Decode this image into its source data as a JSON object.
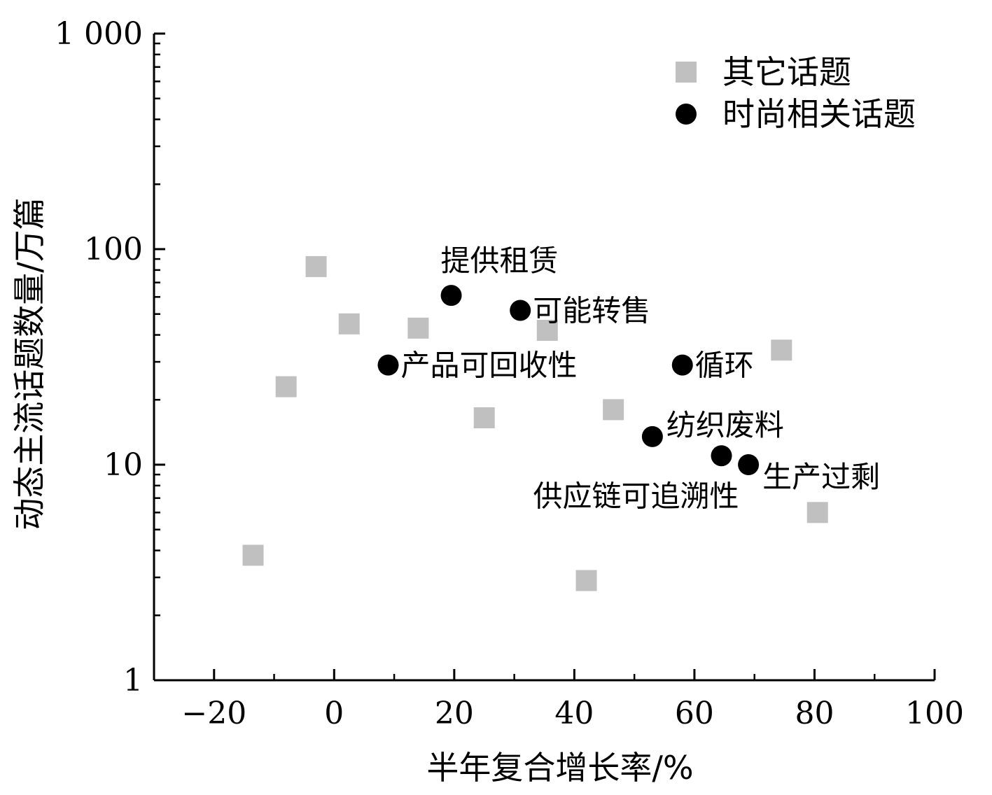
{
  "chart_data": {
    "type": "scatter",
    "xlabel": "半年复合增长率/%",
    "ylabel": "动态主流话题数量/万篇",
    "xlim": [
      -30,
      100
    ],
    "ylim": [
      1,
      1000
    ],
    "y_scale": "log",
    "x_ticks": [
      -20,
      0,
      20,
      40,
      60,
      80,
      100
    ],
    "x_tick_labels": [
      "−20",
      "0",
      "20",
      "40",
      "60",
      "80",
      "100"
    ],
    "y_ticks": [
      1,
      10,
      100,
      1000
    ],
    "y_tick_labels": [
      "1",
      "10",
      "100",
      "1 000"
    ],
    "legend_position": "top-right",
    "series": [
      {
        "name": "其它话题",
        "marker": "square",
        "color": "#c0c0c0",
        "points": [
          {
            "x": -3,
            "y": 83
          },
          {
            "x": 2.5,
            "y": 45
          },
          {
            "x": 14,
            "y": 43
          },
          {
            "x": 35.5,
            "y": 42
          },
          {
            "x": -8,
            "y": 23
          },
          {
            "x": 25,
            "y": 16.5
          },
          {
            "x": 46.5,
            "y": 18
          },
          {
            "x": 74.5,
            "y": 34
          },
          {
            "x": 80.5,
            "y": 6
          },
          {
            "x": -13.5,
            "y": 3.8
          },
          {
            "x": 42,
            "y": 2.9
          }
        ]
      },
      {
        "name": "时尚相关话题",
        "marker": "circle",
        "color": "#000000",
        "points": [
          {
            "x": 19.5,
            "y": 61,
            "label": "提供租赁"
          },
          {
            "x": 31,
            "y": 52,
            "label": "可能转售"
          },
          {
            "x": 9,
            "y": 29,
            "label": "产品可回收性"
          },
          {
            "x": 58,
            "y": 29,
            "label": "循环"
          },
          {
            "x": 53,
            "y": 13.5,
            "label": "纺织废料"
          },
          {
            "x": 64.5,
            "y": 11,
            "label": "供应链可追溯性"
          },
          {
            "x": 69,
            "y": 10,
            "label": "生产过剩"
          }
        ]
      }
    ]
  }
}
